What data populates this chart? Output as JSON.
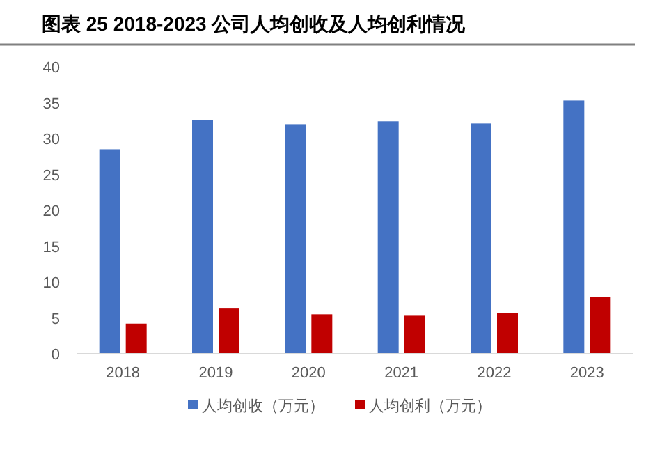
{
  "chart_data": {
    "type": "bar",
    "title": "图表 25 2018-2023 公司人均创收及人均创利情况",
    "categories": [
      "2018",
      "2019",
      "2020",
      "2021",
      "2022",
      "2023"
    ],
    "series": [
      {
        "name": "人均创收（万元）",
        "color": "#4472c4",
        "values": [
          28.5,
          32.6,
          32.0,
          32.4,
          32.1,
          35.3
        ]
      },
      {
        "name": "人均创利（万元）",
        "color": "#c00000",
        "values": [
          4.2,
          6.3,
          5.5,
          5.3,
          5.7,
          7.9
        ]
      }
    ],
    "ylim": [
      0,
      40
    ],
    "yticks": [
      0,
      5,
      10,
      15,
      20,
      25,
      30,
      35,
      40
    ],
    "grid": false,
    "legend": "bottom"
  }
}
